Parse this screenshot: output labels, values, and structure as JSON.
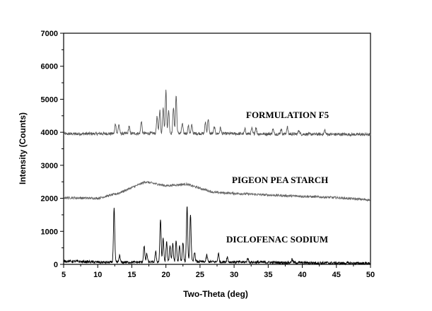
{
  "chart_data": {
    "type": "line",
    "xlabel": "Two-Theta (deg)",
    "ylabel": "Intensity (Counts)",
    "xlim": [
      5,
      50
    ],
    "ylim": [
      0,
      7000
    ],
    "x_ticks": [
      5,
      10,
      15,
      20,
      25,
      30,
      35,
      40,
      45,
      50
    ],
    "y_ticks": [
      0,
      1000,
      2000,
      3000,
      4000,
      5000,
      6000,
      7000
    ],
    "grid": false,
    "series": [
      {
        "name": "FORMULATION F5",
        "color": "#555555",
        "baseline": 3950,
        "noise": 45,
        "drift": [
          [
            5,
            3950
          ],
          [
            20,
            3970
          ],
          [
            50,
            3930
          ]
        ],
        "peaks": [
          {
            "x": 12.6,
            "height": 300
          },
          {
            "x": 13.1,
            "height": 280
          },
          {
            "x": 14.6,
            "height": 220
          },
          {
            "x": 16.4,
            "height": 380
          },
          {
            "x": 18.7,
            "height": 500
          },
          {
            "x": 19.1,
            "height": 700
          },
          {
            "x": 19.6,
            "height": 800
          },
          {
            "x": 20.0,
            "height": 1300
          },
          {
            "x": 20.4,
            "height": 700
          },
          {
            "x": 21.1,
            "height": 800
          },
          {
            "x": 21.5,
            "height": 1150
          },
          {
            "x": 22.4,
            "height": 300
          },
          {
            "x": 23.3,
            "height": 230
          },
          {
            "x": 23.8,
            "height": 250
          },
          {
            "x": 25.8,
            "height": 350
          },
          {
            "x": 26.2,
            "height": 450
          },
          {
            "x": 27.1,
            "height": 200
          },
          {
            "x": 28.0,
            "height": 180
          },
          {
            "x": 31.6,
            "height": 140
          },
          {
            "x": 32.6,
            "height": 160
          },
          {
            "x": 33.2,
            "height": 200
          },
          {
            "x": 35.7,
            "height": 150
          },
          {
            "x": 36.9,
            "height": 160
          },
          {
            "x": 37.8,
            "height": 220
          },
          {
            "x": 39.5,
            "height": 130
          },
          {
            "x": 43.3,
            "height": 130
          }
        ]
      },
      {
        "name": "PIGEON PEA STARCH",
        "color": "#666666",
        "baseline": 1980,
        "noise": 35,
        "drift": [
          [
            5,
            2020
          ],
          [
            10,
            2000
          ],
          [
            13,
            2150
          ],
          [
            17,
            2500
          ],
          [
            20,
            2380
          ],
          [
            23,
            2430
          ],
          [
            27,
            2180
          ],
          [
            35,
            2100
          ],
          [
            45,
            2020
          ],
          [
            50,
            1950
          ]
        ],
        "peaks": []
      },
      {
        "name": "DICLOFENAC SODIUM",
        "color": "#000000",
        "baseline": 60,
        "noise": 40,
        "drift": [
          [
            5,
            100
          ],
          [
            11,
            60
          ],
          [
            25,
            80
          ],
          [
            50,
            30
          ]
        ],
        "peaks": [
          {
            "x": 12.4,
            "height": 1650
          },
          {
            "x": 13.2,
            "height": 200
          },
          {
            "x": 16.8,
            "height": 500
          },
          {
            "x": 17.2,
            "height": 250
          },
          {
            "x": 18.5,
            "height": 300
          },
          {
            "x": 19.2,
            "height": 1300
          },
          {
            "x": 19.6,
            "height": 700
          },
          {
            "x": 20.1,
            "height": 600
          },
          {
            "x": 20.6,
            "height": 500
          },
          {
            "x": 21.0,
            "height": 550
          },
          {
            "x": 21.5,
            "height": 650
          },
          {
            "x": 22.0,
            "height": 500
          },
          {
            "x": 22.5,
            "height": 600
          },
          {
            "x": 23.1,
            "height": 1700
          },
          {
            "x": 23.6,
            "height": 1450
          },
          {
            "x": 24.2,
            "height": 300
          },
          {
            "x": 26.0,
            "height": 200
          },
          {
            "x": 27.7,
            "height": 250
          },
          {
            "x": 29.0,
            "height": 150
          },
          {
            "x": 32.0,
            "height": 120
          },
          {
            "x": 38.5,
            "height": 100
          }
        ]
      }
    ]
  }
}
